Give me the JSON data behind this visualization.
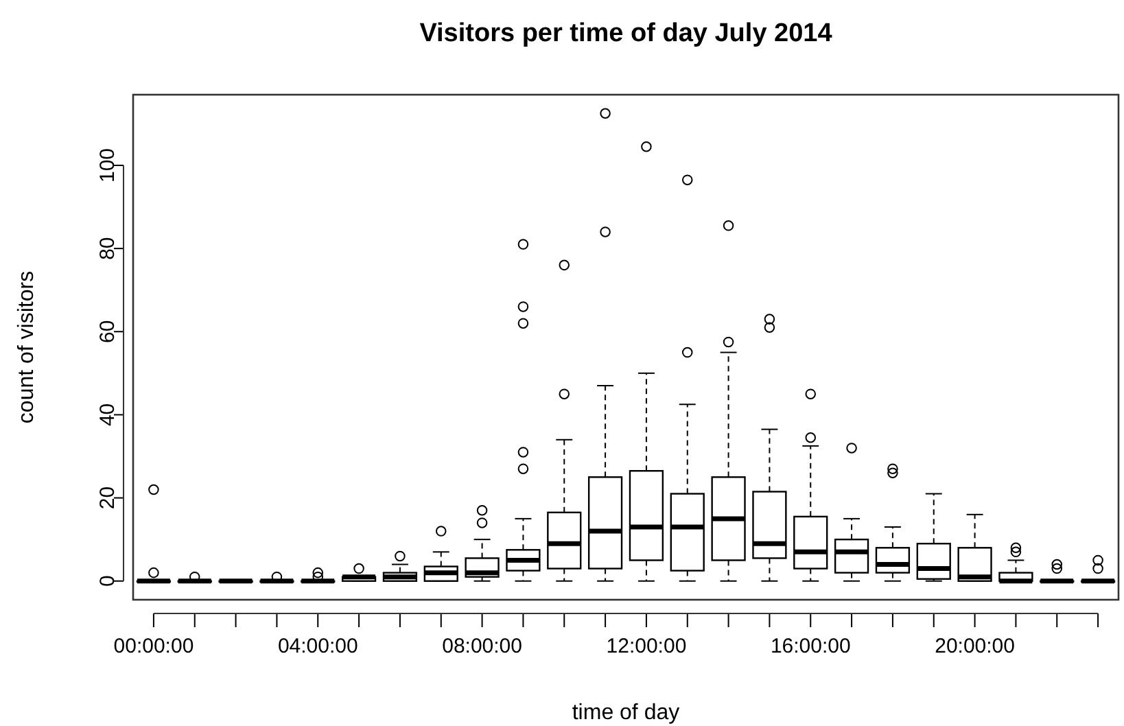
{
  "chart_data": {
    "type": "box",
    "title": "Visitors per time of day July 2014",
    "xlabel": "time of day",
    "ylabel": "count of visitors",
    "categories": [
      "00:00:00",
      null,
      null,
      null,
      "04:00:00",
      null,
      null,
      null,
      "08:00:00",
      null,
      null,
      null,
      "12:00:00",
      null,
      null,
      null,
      "16:00:00",
      null,
      null,
      null,
      "20:00:00",
      null,
      null,
      null
    ],
    "ylim": [
      -4.5,
      117
    ],
    "yticks": [
      0,
      20,
      40,
      60,
      80,
      100
    ],
    "grid": false,
    "marker": "circle",
    "boxes": [
      {
        "low": 0,
        "q1": 0,
        "median": 0,
        "q3": 0,
        "high": 0,
        "outliers": [
          2,
          22
        ]
      },
      {
        "low": 0,
        "q1": 0,
        "median": 0,
        "q3": 0,
        "high": 0,
        "outliers": [
          1
        ]
      },
      {
        "low": 0,
        "q1": 0,
        "median": 0,
        "q3": 0,
        "high": 0
      },
      {
        "low": 0,
        "q1": 0,
        "median": 0,
        "q3": 0,
        "high": 0,
        "outliers": [
          1
        ]
      },
      {
        "low": 0,
        "q1": 0,
        "median": 0,
        "q3": 0,
        "high": 0,
        "outliers": [
          1,
          2
        ]
      },
      {
        "low": 0,
        "q1": 0,
        "median": 1,
        "q3": 1,
        "high": 1,
        "outliers": [
          3
        ]
      },
      {
        "low": 0,
        "q1": 0,
        "median": 1,
        "q3": 2,
        "high": 4,
        "outliers": [
          6
        ]
      },
      {
        "low": 0,
        "q1": 0,
        "median": 2,
        "q3": 3.5,
        "high": 7,
        "outliers": [
          12
        ]
      },
      {
        "low": 0,
        "q1": 1,
        "median": 2,
        "q3": 5.5,
        "high": 10,
        "outliers": [
          14,
          17
        ]
      },
      {
        "low": 0,
        "q1": 2.5,
        "median": 5,
        "q3": 7.5,
        "high": 15,
        "outliers": [
          27,
          31,
          62,
          66,
          81
        ]
      },
      {
        "low": 0,
        "q1": 3,
        "median": 9,
        "q3": 16.5,
        "high": 34,
        "outliers": [
          45,
          76
        ]
      },
      {
        "low": 0,
        "q1": 3,
        "median": 12,
        "q3": 25,
        "high": 47,
        "outliers": [
          84,
          112.5
        ]
      },
      {
        "low": 0,
        "q1": 5,
        "median": 13,
        "q3": 26.5,
        "high": 50,
        "outliers": [
          104.5
        ]
      },
      {
        "low": 0,
        "q1": 2.5,
        "median": 13,
        "q3": 21,
        "high": 42.5,
        "outliers": [
          55,
          96.5
        ]
      },
      {
        "low": 0,
        "q1": 5,
        "median": 15,
        "q3": 25,
        "high": 55,
        "outliers": [
          57.5,
          85.5
        ]
      },
      {
        "low": 0,
        "q1": 5.5,
        "median": 9,
        "q3": 21.5,
        "high": 36.5,
        "outliers": [
          61,
          63
        ]
      },
      {
        "low": 0,
        "q1": 3,
        "median": 7,
        "q3": 15.5,
        "high": 32.5,
        "outliers": [
          34.5,
          45
        ]
      },
      {
        "low": 0,
        "q1": 2,
        "median": 7,
        "q3": 10,
        "high": 15,
        "outliers": [
          32
        ]
      },
      {
        "low": 0,
        "q1": 2,
        "median": 4,
        "q3": 8,
        "high": 13,
        "outliers": [
          26,
          27
        ]
      },
      {
        "low": 0,
        "q1": 0.5,
        "median": 3,
        "q3": 9,
        "high": 21
      },
      {
        "low": 0,
        "q1": 0,
        "median": 1,
        "q3": 8,
        "high": 16
      },
      {
        "low": 0,
        "q1": 0,
        "median": 0,
        "q3": 2,
        "high": 5,
        "outliers": [
          7,
          8
        ]
      },
      {
        "low": 0,
        "q1": 0,
        "median": 0,
        "q3": 0,
        "high": 0,
        "outliers": [
          3,
          4
        ]
      },
      {
        "low": 0,
        "q1": 0,
        "median": 0,
        "q3": 0,
        "high": 0,
        "outliers": [
          3,
          5
        ]
      }
    ]
  }
}
